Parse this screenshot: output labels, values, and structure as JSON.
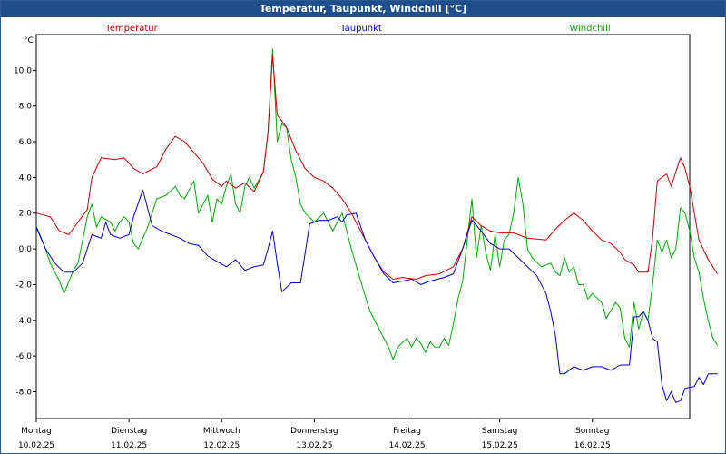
{
  "window": {
    "title": "Temperatur, Taupunkt, Windchill [°C]"
  },
  "chart_data": {
    "type": "line",
    "title": "Temperatur, Taupunkt, Windchill [°C]",
    "ylabel": "°C",
    "ylim": [
      -9.5,
      12
    ],
    "y_ticks": [
      "10,0",
      "8,0",
      "6,0",
      "4,0",
      "2,0",
      "0,0",
      "-2,0",
      "-4,0",
      "-6,0",
      "-8,0"
    ],
    "y_tick_values": [
      10,
      8,
      6,
      4,
      2,
      0,
      -2,
      -4,
      -6,
      -8
    ],
    "x_days": [
      {
        "day": "Montag",
        "date": "10.02.25"
      },
      {
        "day": "Dienstag",
        "date": "11.02.25"
      },
      {
        "day": "Mittwoch",
        "date": "12.02.25"
      },
      {
        "day": "Donnerstag",
        "date": "13.02.25"
      },
      {
        "day": "Freitag",
        "date": "14.02.25"
      },
      {
        "day": "Samstag",
        "date": "15.02.25"
      },
      {
        "day": "Sonntag",
        "date": "16.02.25"
      }
    ],
    "xlim": [
      0,
      7.1
    ],
    "grid": true,
    "series": [
      {
        "name": "Temperatur",
        "color": "#cc0000",
        "points": [
          [
            0.0,
            2.0
          ],
          [
            0.15,
            1.8
          ],
          [
            0.25,
            1.0
          ],
          [
            0.35,
            0.8
          ],
          [
            0.45,
            1.5
          ],
          [
            0.55,
            2.2
          ],
          [
            0.6,
            4.0
          ],
          [
            0.7,
            5.1
          ],
          [
            0.85,
            5.0
          ],
          [
            0.95,
            5.1
          ],
          [
            1.05,
            4.5
          ],
          [
            1.15,
            4.2
          ],
          [
            1.3,
            4.6
          ],
          [
            1.4,
            5.6
          ],
          [
            1.5,
            6.3
          ],
          [
            1.6,
            6.0
          ],
          [
            1.7,
            5.4
          ],
          [
            1.8,
            4.8
          ],
          [
            1.9,
            3.9
          ],
          [
            2.0,
            3.5
          ],
          [
            2.05,
            3.8
          ],
          [
            2.15,
            3.4
          ],
          [
            2.25,
            3.7
          ],
          [
            2.35,
            3.2
          ],
          [
            2.45,
            4.3
          ],
          [
            2.5,
            6.5
          ],
          [
            2.55,
            10.8
          ],
          [
            2.6,
            7.5
          ],
          [
            2.7,
            6.8
          ],
          [
            2.8,
            5.5
          ],
          [
            2.9,
            4.5
          ],
          [
            3.0,
            4.0
          ],
          [
            3.1,
            3.8
          ],
          [
            3.2,
            3.4
          ],
          [
            3.3,
            2.8
          ],
          [
            3.4,
            2.0
          ],
          [
            3.45,
            1.5
          ],
          [
            3.55,
            0.5
          ],
          [
            3.65,
            -0.5
          ],
          [
            3.75,
            -1.3
          ],
          [
            3.85,
            -1.7
          ],
          [
            3.95,
            -1.6
          ],
          [
            4.1,
            -1.7
          ],
          [
            4.2,
            -1.5
          ],
          [
            4.35,
            -1.4
          ],
          [
            4.5,
            -1.0
          ],
          [
            4.6,
            0.0
          ],
          [
            4.7,
            1.8
          ],
          [
            4.8,
            1.3
          ],
          [
            4.9,
            1.0
          ],
          [
            5.0,
            0.9
          ],
          [
            5.15,
            0.9
          ],
          [
            5.3,
            0.6
          ],
          [
            5.5,
            0.5
          ],
          [
            5.6,
            1.1
          ],
          [
            5.7,
            1.6
          ],
          [
            5.8,
            2.0
          ],
          [
            5.9,
            1.6
          ],
          [
            6.0,
            1.0
          ],
          [
            6.1,
            0.5
          ],
          [
            6.2,
            0.3
          ],
          [
            6.3,
            -0.2
          ],
          [
            6.35,
            -0.6
          ],
          [
            6.45,
            -0.9
          ],
          [
            6.5,
            -1.3
          ],
          [
            6.6,
            -1.3
          ],
          [
            6.65,
            0.6
          ],
          [
            6.7,
            3.8
          ],
          [
            6.8,
            4.2
          ],
          [
            6.85,
            3.5
          ],
          [
            6.95,
            5.1
          ],
          [
            7.0,
            4.5
          ],
          [
            7.05,
            3.5
          ],
          [
            7.1,
            2.0
          ],
          [
            7.15,
            0.5
          ],
          [
            7.25,
            -0.6
          ],
          [
            7.35,
            -1.4
          ]
        ]
      },
      {
        "name": "Taupunkt",
        "color": "#0000cc",
        "points": [
          [
            0.0,
            1.2
          ],
          [
            0.1,
            0.0
          ],
          [
            0.2,
            -0.8
          ],
          [
            0.3,
            -1.3
          ],
          [
            0.4,
            -1.3
          ],
          [
            0.5,
            -0.8
          ],
          [
            0.6,
            0.8
          ],
          [
            0.7,
            0.6
          ],
          [
            0.75,
            1.5
          ],
          [
            0.8,
            0.8
          ],
          [
            0.9,
            0.6
          ],
          [
            1.0,
            0.8
          ],
          [
            1.05,
            1.8
          ],
          [
            1.15,
            3.3
          ],
          [
            1.25,
            1.3
          ],
          [
            1.35,
            1.0
          ],
          [
            1.45,
            0.8
          ],
          [
            1.55,
            0.6
          ],
          [
            1.65,
            0.3
          ],
          [
            1.75,
            0.2
          ],
          [
            1.85,
            -0.4
          ],
          [
            1.95,
            -0.7
          ],
          [
            2.05,
            -1.0
          ],
          [
            2.15,
            -0.6
          ],
          [
            2.25,
            -1.2
          ],
          [
            2.35,
            -1.0
          ],
          [
            2.45,
            -0.9
          ],
          [
            2.5,
            0.0
          ],
          [
            2.55,
            1.0
          ],
          [
            2.6,
            -0.8
          ],
          [
            2.65,
            -2.4
          ],
          [
            2.75,
            -1.9
          ],
          [
            2.85,
            -1.9
          ],
          [
            2.95,
            1.4
          ],
          [
            3.05,
            1.6
          ],
          [
            3.15,
            1.6
          ],
          [
            3.25,
            1.8
          ],
          [
            3.3,
            1.5
          ],
          [
            3.35,
            1.9
          ],
          [
            3.45,
            2.0
          ],
          [
            3.55,
            0.5
          ],
          [
            3.65,
            -0.5
          ],
          [
            3.75,
            -1.4
          ],
          [
            3.85,
            -1.9
          ],
          [
            3.95,
            -1.8
          ],
          [
            4.05,
            -1.7
          ],
          [
            4.15,
            -2.0
          ],
          [
            4.25,
            -1.8
          ],
          [
            4.4,
            -1.6
          ],
          [
            4.5,
            -1.4
          ],
          [
            4.6,
            0.0
          ],
          [
            4.7,
            1.6
          ],
          [
            4.8,
            1.0
          ],
          [
            4.9,
            0.3
          ],
          [
            5.0,
            0.0
          ],
          [
            5.1,
            0.0
          ],
          [
            5.2,
            -0.5
          ],
          [
            5.3,
            -1.0
          ],
          [
            5.4,
            -1.5
          ],
          [
            5.5,
            -2.5
          ],
          [
            5.55,
            -3.5
          ],
          [
            5.6,
            -4.8
          ],
          [
            5.65,
            -7.0
          ],
          [
            5.7,
            -7.0
          ],
          [
            5.8,
            -6.6
          ],
          [
            5.9,
            -6.8
          ],
          [
            6.0,
            -6.6
          ],
          [
            6.1,
            -6.6
          ],
          [
            6.2,
            -6.8
          ],
          [
            6.3,
            -6.5
          ],
          [
            6.4,
            -6.5
          ],
          [
            6.45,
            -3.8
          ],
          [
            6.5,
            -3.8
          ],
          [
            6.55,
            -3.5
          ],
          [
            6.6,
            -4.0
          ],
          [
            6.65,
            -5.0
          ],
          [
            6.7,
            -5.2
          ],
          [
            6.75,
            -7.6
          ],
          [
            6.8,
            -8.5
          ],
          [
            6.85,
            -8.0
          ],
          [
            6.9,
            -8.6
          ],
          [
            6.95,
            -8.5
          ],
          [
            7.0,
            -7.8
          ],
          [
            7.1,
            -7.7
          ],
          [
            7.15,
            -7.2
          ],
          [
            7.2,
            -7.6
          ],
          [
            7.25,
            -7.0
          ],
          [
            7.35,
            -7.0
          ]
        ]
      },
      {
        "name": "Windchill",
        "color": "#00aa00",
        "points": [
          [
            0.0,
            1.3
          ],
          [
            0.1,
            0.0
          ],
          [
            0.15,
            -0.8
          ],
          [
            0.25,
            -1.8
          ],
          [
            0.3,
            -2.5
          ],
          [
            0.4,
            -1.2
          ],
          [
            0.45,
            -0.8
          ],
          [
            0.5,
            0.5
          ],
          [
            0.55,
            1.8
          ],
          [
            0.6,
            2.5
          ],
          [
            0.65,
            1.2
          ],
          [
            0.7,
            1.8
          ],
          [
            0.8,
            1.5
          ],
          [
            0.85,
            1.0
          ],
          [
            0.9,
            1.5
          ],
          [
            0.95,
            1.8
          ],
          [
            1.0,
            1.5
          ],
          [
            1.05,
            0.3
          ],
          [
            1.1,
            0.0
          ],
          [
            1.2,
            1.2
          ],
          [
            1.3,
            2.8
          ],
          [
            1.4,
            3.0
          ],
          [
            1.5,
            3.5
          ],
          [
            1.55,
            3.0
          ],
          [
            1.6,
            2.8
          ],
          [
            1.7,
            3.8
          ],
          [
            1.75,
            2.0
          ],
          [
            1.85,
            3.0
          ],
          [
            1.9,
            1.5
          ],
          [
            1.95,
            2.8
          ],
          [
            2.0,
            2.5
          ],
          [
            2.05,
            3.5
          ],
          [
            2.1,
            4.2
          ],
          [
            2.15,
            2.5
          ],
          [
            2.2,
            2.0
          ],
          [
            2.25,
            3.5
          ],
          [
            2.3,
            4.0
          ],
          [
            2.35,
            3.4
          ],
          [
            2.45,
            4.3
          ],
          [
            2.5,
            6.5
          ],
          [
            2.55,
            11.2
          ],
          [
            2.6,
            6.0
          ],
          [
            2.65,
            7.0
          ],
          [
            2.7,
            6.8
          ],
          [
            2.75,
            5.0
          ],
          [
            2.8,
            4.0
          ],
          [
            2.85,
            2.5
          ],
          [
            2.9,
            2.0
          ],
          [
            3.0,
            1.5
          ],
          [
            3.1,
            2.0
          ],
          [
            3.2,
            1.0
          ],
          [
            3.3,
            2.0
          ],
          [
            3.35,
            1.0
          ],
          [
            3.4,
            0.0
          ],
          [
            3.5,
            -1.8
          ],
          [
            3.6,
            -3.5
          ],
          [
            3.7,
            -4.5
          ],
          [
            3.8,
            -5.5
          ],
          [
            3.85,
            -6.2
          ],
          [
            3.9,
            -5.5
          ],
          [
            4.0,
            -5.0
          ],
          [
            4.05,
            -5.5
          ],
          [
            4.1,
            -5.0
          ],
          [
            4.15,
            -5.3
          ],
          [
            4.2,
            -5.8
          ],
          [
            4.25,
            -5.2
          ],
          [
            4.3,
            -5.5
          ],
          [
            4.35,
            -5.5
          ],
          [
            4.4,
            -5.0
          ],
          [
            4.45,
            -5.4
          ],
          [
            4.5,
            -4.2
          ],
          [
            4.55,
            -2.8
          ],
          [
            4.6,
            -1.8
          ],
          [
            4.65,
            0.5
          ],
          [
            4.7,
            2.8
          ],
          [
            4.75,
            -0.5
          ],
          [
            4.8,
            1.3
          ],
          [
            4.85,
            -0.2
          ],
          [
            4.9,
            -1.2
          ],
          [
            4.95,
            0.8
          ],
          [
            5.0,
            -1.0
          ],
          [
            5.05,
            0.5
          ],
          [
            5.1,
            0.8
          ],
          [
            5.15,
            2.0
          ],
          [
            5.2,
            4.0
          ],
          [
            5.25,
            2.5
          ],
          [
            5.3,
            0.0
          ],
          [
            5.35,
            -0.5
          ],
          [
            5.45,
            -1.0
          ],
          [
            5.55,
            -0.8
          ],
          [
            5.6,
            -1.3
          ],
          [
            5.65,
            -1.5
          ],
          [
            5.7,
            -0.5
          ],
          [
            5.75,
            -1.3
          ],
          [
            5.8,
            -1.0
          ],
          [
            5.85,
            -2.0
          ],
          [
            5.9,
            -2.0
          ],
          [
            5.95,
            -2.8
          ],
          [
            6.0,
            -2.5
          ],
          [
            6.1,
            -3.0
          ],
          [
            6.15,
            -3.9
          ],
          [
            6.25,
            -3.0
          ],
          [
            6.3,
            -3.3
          ],
          [
            6.35,
            -5.0
          ],
          [
            6.4,
            -5.5
          ],
          [
            6.45,
            -3.0
          ],
          [
            6.5,
            -4.5
          ],
          [
            6.55,
            -3.5
          ],
          [
            6.6,
            -4.0
          ],
          [
            6.65,
            -2.0
          ],
          [
            6.7,
            0.5
          ],
          [
            6.75,
            -0.2
          ],
          [
            6.8,
            0.5
          ],
          [
            6.85,
            -0.5
          ],
          [
            6.9,
            0.0
          ],
          [
            6.95,
            2.3
          ],
          [
            7.0,
            2.0
          ],
          [
            7.05,
            1.0
          ],
          [
            7.1,
            -0.5
          ],
          [
            7.15,
            -1.3
          ],
          [
            7.2,
            -2.8
          ],
          [
            7.25,
            -4.0
          ],
          [
            7.3,
            -5.0
          ],
          [
            7.35,
            -5.4
          ]
        ]
      }
    ]
  }
}
